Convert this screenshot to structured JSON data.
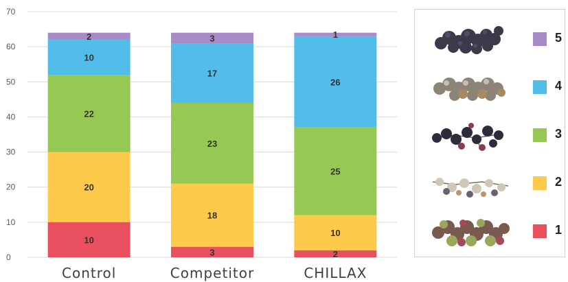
{
  "chart_data": {
    "type": "bar",
    "stacked": true,
    "categories": [
      "Control",
      "Competitor",
      "CHILLAX"
    ],
    "series": [
      {
        "name": "1",
        "color": "#e8505f",
        "values": [
          10,
          3,
          2
        ]
      },
      {
        "name": "2",
        "color": "#fdca4c",
        "values": [
          20,
          18,
          10
        ]
      },
      {
        "name": "3",
        "color": "#98c854",
        "values": [
          22,
          23,
          25
        ]
      },
      {
        "name": "4",
        "color": "#52bde9",
        "values": [
          10,
          17,
          26
        ]
      },
      {
        "name": "5",
        "color": "#a98ac9",
        "values": [
          2,
          3,
          1
        ]
      }
    ],
    "y_ticks": [
      "0",
      "10",
      "20",
      "30",
      "40",
      "50",
      "60",
      "70"
    ],
    "ylim": [
      0,
      70
    ],
    "grid": true,
    "legend_position": "right"
  },
  "legend": {
    "items": [
      {
        "label": "5",
        "color": "#a98ac9",
        "icon": "dark-purple-grape-cluster-icon"
      },
      {
        "label": "4",
        "color": "#52bde9",
        "icon": "grey-brown-grape-cluster-icon"
      },
      {
        "label": "3",
        "color": "#98c854",
        "icon": "dark-sparse-grape-cluster-icon"
      },
      {
        "label": "2",
        "color": "#fdca4c",
        "icon": "pale-shriveled-grape-cluster-icon"
      },
      {
        "label": "1",
        "color": "#e8505f",
        "icon": "green-red-grape-cluster-icon"
      }
    ]
  }
}
